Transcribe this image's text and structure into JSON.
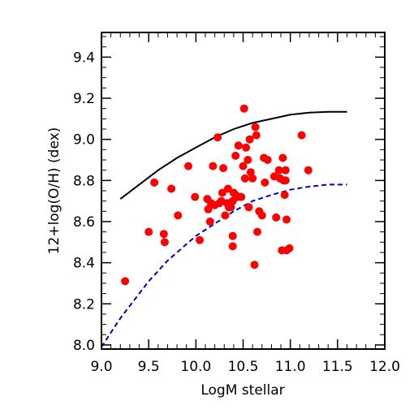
{
  "chart_data": {
    "type": "scatter",
    "title": "",
    "xlabel": "LogM stellar",
    "ylabel": "12+log(O/H) (dex)",
    "xlim": [
      9.0,
      12.0
    ],
    "ylim": [
      7.98,
      9.52
    ],
    "xticks": [
      "9.0",
      "9.5",
      "10.0",
      "10.5",
      "11.0",
      "11.5",
      "12.0"
    ],
    "yticks": [
      "8.0",
      "8.2",
      "8.4",
      "8.6",
      "8.8",
      "9.0",
      "9.2",
      "9.4"
    ],
    "grid": false,
    "legend": "none",
    "points_color": "#ff0000",
    "points": [
      [
        9.25,
        8.31
      ],
      [
        9.5,
        8.55
      ],
      [
        9.56,
        8.79
      ],
      [
        9.66,
        8.54
      ],
      [
        9.67,
        8.5
      ],
      [
        9.74,
        8.76
      ],
      [
        9.81,
        8.63
      ],
      [
        9.92,
        8.87
      ],
      [
        9.99,
        8.72
      ],
      [
        10.04,
        8.51
      ],
      [
        10.12,
        8.71
      ],
      [
        10.13,
        8.66
      ],
      [
        10.15,
        8.6
      ],
      [
        10.16,
        8.69
      ],
      [
        10.18,
        8.87
      ],
      [
        10.2,
        8.68
      ],
      [
        10.23,
        9.01
      ],
      [
        10.25,
        8.69
      ],
      [
        10.27,
        8.7
      ],
      [
        10.28,
        8.74
      ],
      [
        10.29,
        8.86
      ],
      [
        10.31,
        8.63
      ],
      [
        10.33,
        8.69
      ],
      [
        10.34,
        8.76
      ],
      [
        10.35,
        8.67
      ],
      [
        10.36,
        8.69
      ],
      [
        10.37,
        8.67
      ],
      [
        10.39,
        8.7
      ],
      [
        10.39,
        8.53
      ],
      [
        10.39,
        8.48
      ],
      [
        10.4,
        8.74
      ],
      [
        10.42,
        8.73
      ],
      [
        10.42,
        8.92
      ],
      [
        10.44,
        8.72
      ],
      [
        10.45,
        8.97
      ],
      [
        10.47,
        8.72
      ],
      [
        10.48,
        8.72
      ],
      [
        10.5,
        8.87
      ],
      [
        10.51,
        9.15
      ],
      [
        10.52,
        8.81
      ],
      [
        10.53,
        8.96
      ],
      [
        10.55,
        8.9
      ],
      [
        10.56,
        8.67
      ],
      [
        10.57,
        9.0
      ],
      [
        10.58,
        8.84
      ],
      [
        10.6,
        8.81
      ],
      [
        10.62,
        8.39
      ],
      [
        10.63,
        9.06
      ],
      [
        10.64,
        9.02
      ],
      [
        10.65,
        8.55
      ],
      [
        10.67,
        8.65
      ],
      [
        10.7,
        8.63
      ],
      [
        10.72,
        8.91
      ],
      [
        10.73,
        8.79
      ],
      [
        10.76,
        8.9
      ],
      [
        10.83,
        8.82
      ],
      [
        10.85,
        8.62
      ],
      [
        10.88,
        8.85
      ],
      [
        10.89,
        8.81
      ],
      [
        10.91,
        8.46
      ],
      [
        10.92,
        8.91
      ],
      [
        10.93,
        8.8
      ],
      [
        10.94,
        8.73
      ],
      [
        10.95,
        8.85
      ],
      [
        10.95,
        8.8
      ],
      [
        10.96,
        8.61
      ],
      [
        10.96,
        8.46
      ],
      [
        10.99,
        8.47
      ],
      [
        11.12,
        9.02
      ],
      [
        11.19,
        8.85
      ]
    ],
    "series": [
      {
        "style": "solid",
        "color": "#000000",
        "x": [
          9.2,
          9.4,
          9.6,
          9.8,
          10.0,
          10.2,
          10.4,
          10.6,
          10.8,
          11.0,
          11.2,
          11.4,
          11.6
        ],
        "y": [
          8.71,
          8.78,
          8.85,
          8.91,
          8.96,
          9.01,
          9.05,
          9.08,
          9.1,
          9.12,
          9.13,
          9.134,
          9.134
        ]
      },
      {
        "style": "dashed",
        "color": "#0000cc",
        "x": [
          9.0,
          9.1,
          9.2,
          9.3,
          9.4,
          9.5,
          9.6,
          9.7,
          9.8,
          9.9,
          10.0,
          10.2,
          10.4,
          10.6,
          10.8,
          11.0,
          11.2,
          11.4,
          11.6
        ],
        "y": [
          7.99,
          8.06,
          8.13,
          8.19,
          8.25,
          8.31,
          8.36,
          8.41,
          8.45,
          8.49,
          8.53,
          8.59,
          8.65,
          8.7,
          8.73,
          8.755,
          8.77,
          8.78,
          8.78
        ]
      }
    ]
  }
}
